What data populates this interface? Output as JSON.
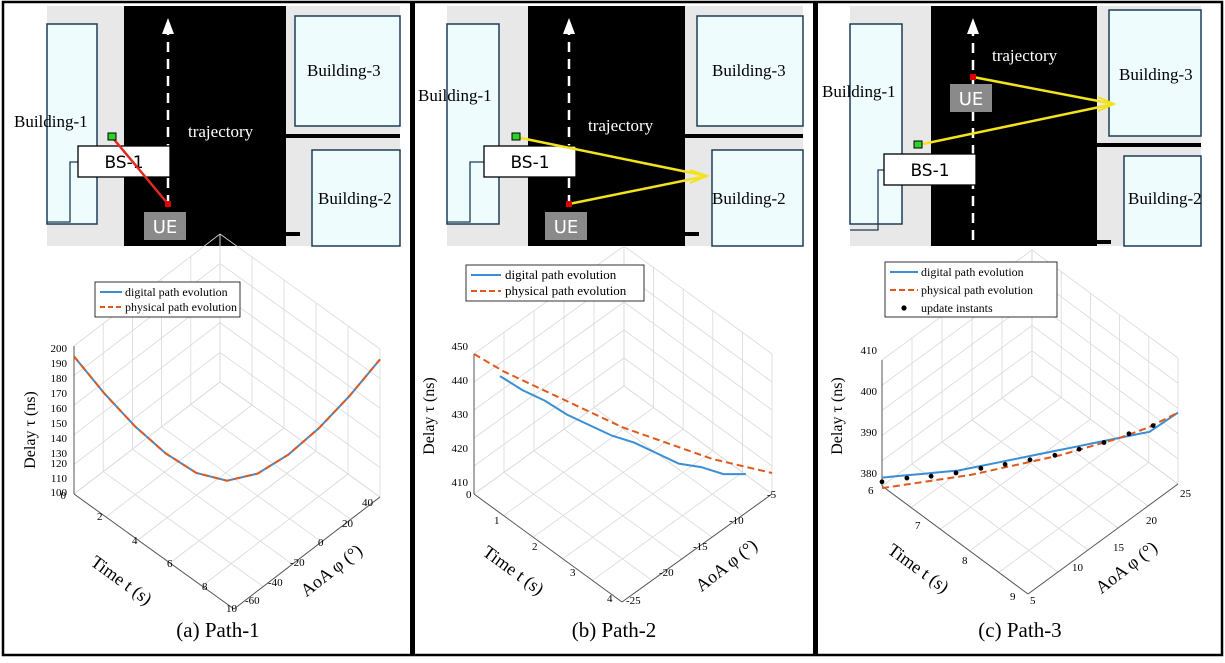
{
  "panels": [
    {
      "caption": "(a) Path-1",
      "scene": {
        "buildings": [
          "Building-1",
          "Building-2",
          "Building-3"
        ],
        "trajectory_label": "trajectory",
        "bs_label": "BS-1",
        "ue_label": "UE",
        "path_color": "#e02b1e"
      },
      "legend": [
        "digital path evolution",
        "physical path evolution"
      ],
      "axes": {
        "zlabel": "Delay τ (ns)",
        "xlabel": "Time t (s)",
        "ylabel": "AoA φ (°)",
        "ticks_z": [
          "100",
          "110",
          "120",
          "130",
          "140",
          "150",
          "160",
          "170",
          "180",
          "190",
          "200"
        ],
        "ticks_t": [
          "0",
          "2",
          "4",
          "6",
          "8",
          "10"
        ],
        "ticks_phi": [
          "-60",
          "-40",
          "-20",
          "0",
          "20",
          "40"
        ]
      }
    },
    {
      "caption": "(b) Path-2",
      "scene": {
        "buildings": [
          "Building-1",
          "Building-2",
          "Building-3"
        ],
        "trajectory_label": "trajectory",
        "bs_label": "BS-1",
        "ue_label": "UE",
        "path_color": "#f3e31d"
      },
      "legend": [
        "digital path evolution",
        "physical path evolution"
      ],
      "axes": {
        "zlabel": "Delay τ (ns)",
        "xlabel": "Time t (s)",
        "ylabel": "AoA φ (°)",
        "ticks_z": [
          "410",
          "420",
          "430",
          "440",
          "450"
        ],
        "ticks_t": [
          "0",
          "1",
          "2",
          "3",
          "4"
        ],
        "ticks_phi": [
          "-25",
          "-20",
          "-15",
          "-10",
          "-5"
        ]
      }
    },
    {
      "caption": "(c) Path-3",
      "scene": {
        "buildings": [
          "Building-1",
          "Building-2",
          "Building-3"
        ],
        "trajectory_label": "trajectory",
        "bs_label": "BS-1",
        "ue_label": "UE",
        "path_color": "#f3e31d"
      },
      "legend": [
        "digital path evolution",
        "physical path evolution",
        "update instants"
      ],
      "axes": {
        "zlabel": "Delay τ (ns)",
        "xlabel": "Time t (s)",
        "ylabel": "AoA φ (°)",
        "ticks_z": [
          "380",
          "390",
          "400",
          "410"
        ],
        "ticks_t": [
          "6",
          "7",
          "8",
          "9"
        ],
        "ticks_phi": [
          "5",
          "10",
          "15",
          "20",
          "25"
        ]
      }
    }
  ],
  "colors": {
    "digital": "#3b8ed4",
    "physical": "#e0581e",
    "building_fill": "#eefcfe",
    "road": "#000000",
    "bs_marker": "#2bd32b",
    "ue_marker": "#e00000"
  },
  "chart_data": [
    {
      "type": "line",
      "series": [
        {
          "name": "digital path evolution",
          "t": [
            0,
            1,
            2,
            3,
            4,
            5,
            6,
            7,
            8,
            9,
            10
          ],
          "phi": [
            -60,
            -48,
            -36,
            -24,
            -12,
            0,
            12,
            24,
            36,
            48,
            60
          ],
          "tau": [
            193,
            168,
            146,
            128,
            115,
            110,
            115,
            128,
            146,
            168,
            193
          ]
        },
        {
          "name": "physical path evolution",
          "t": [
            0,
            1,
            2,
            3,
            4,
            5,
            6,
            7,
            8,
            9,
            10
          ],
          "phi": [
            -60,
            -48,
            -36,
            -24,
            -12,
            0,
            12,
            24,
            36,
            48,
            60
          ],
          "tau": [
            193,
            168,
            146,
            128,
            115,
            110,
            115,
            128,
            146,
            168,
            193
          ]
        }
      ],
      "zlim": [
        100,
        200
      ],
      "tlim": [
        0,
        10
      ],
      "philim": [
        -60,
        60
      ]
    },
    {
      "type": "line",
      "series": [
        {
          "name": "digital path evolution",
          "t": [
            0.5,
            0.8,
            1.1,
            1.4,
            1.7,
            2.0,
            2.3,
            2.6,
            2.9,
            3.2,
            3.5,
            3.8
          ],
          "phi": [
            -24,
            -22.5,
            -21,
            -19.5,
            -18,
            -16.5,
            -15,
            -13.5,
            -12,
            -10.5,
            -9,
            -7.5
          ],
          "tau": [
            446,
            442,
            439,
            435,
            432,
            429,
            427,
            424,
            421,
            420,
            418,
            418
          ]
        },
        {
          "name": "physical path evolution",
          "t": [
            0.0,
            0.4,
            0.8,
            1.2,
            1.6,
            2.0,
            2.4,
            2.8,
            3.2,
            3.6,
            4.0
          ],
          "phi": [
            -25,
            -23,
            -21,
            -19,
            -17,
            -15,
            -13,
            -11,
            -9,
            -7,
            -5
          ],
          "tau": [
            450,
            445,
            441,
            437,
            433,
            429,
            426,
            423,
            420,
            418,
            416
          ]
        }
      ],
      "zlim": [
        410,
        450
      ],
      "tlim": [
        0,
        4
      ],
      "philim": [
        -25,
        -5
      ]
    },
    {
      "type": "line",
      "series": [
        {
          "name": "digital path evolution",
          "t": [
            6.0,
            6.2,
            6.4,
            6.6,
            6.8,
            7.0,
            7.2,
            7.4,
            7.6,
            7.8,
            8.0,
            8.2,
            8.4,
            8.6,
            8.8,
            9.0
          ],
          "phi": [
            5,
            6.25,
            7.5,
            8.75,
            10,
            11.25,
            12.5,
            13.75,
            15,
            16.25,
            17.5,
            18.75,
            20,
            21.25,
            22.5,
            25
          ],
          "tau": [
            382,
            382.5,
            383,
            383.5,
            384,
            385,
            386,
            387,
            388,
            389,
            390,
            391,
            392,
            393,
            394,
            397
          ]
        },
        {
          "name": "physical path evolution",
          "t": [
            6.0,
            6.3,
            6.6,
            6.9,
            7.2,
            7.5,
            7.8,
            8.1,
            8.4,
            8.7,
            9.0
          ],
          "phi": [
            5,
            7,
            9,
            11,
            13,
            15,
            17,
            19,
            21,
            23,
            25
          ],
          "tau": [
            379.5,
            380.5,
            381.5,
            382.5,
            384,
            385.5,
            387,
            389,
            391,
            393.5,
            397
          ]
        },
        {
          "name": "update instants",
          "t": [
            6.0,
            6.25,
            6.5,
            6.75,
            7.0,
            7.25,
            7.5,
            7.75,
            8.0,
            8.25,
            8.5,
            8.75
          ],
          "phi": [
            5,
            6.7,
            8.3,
            10,
            11.7,
            13.3,
            15,
            16.7,
            18.3,
            20,
            21.7,
            23.3
          ],
          "tau": [
            381,
            381.8,
            382.3,
            383,
            384,
            385,
            386,
            387,
            388.5,
            390,
            392,
            394
          ]
        }
      ],
      "zlim": [
        380,
        410
      ],
      "tlim": [
        6,
        9
      ],
      "philim": [
        5,
        25
      ]
    }
  ]
}
